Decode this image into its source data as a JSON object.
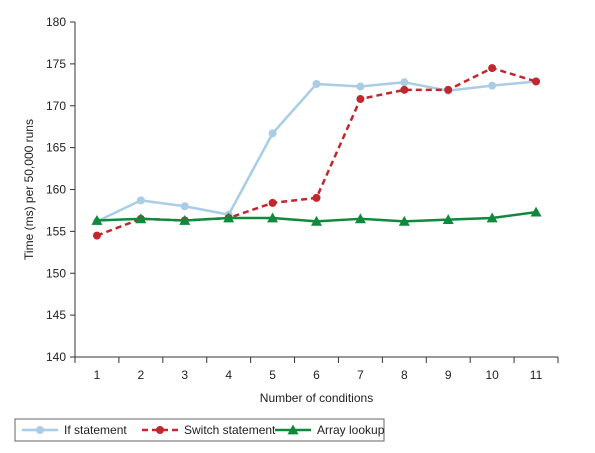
{
  "chart_data": {
    "type": "line",
    "xlabel": "Number of conditions",
    "ylabel": "Time (ms) per 50,000 runs",
    "x": [
      1,
      2,
      3,
      4,
      5,
      6,
      7,
      8,
      9,
      10,
      11
    ],
    "ylim": [
      140,
      180
    ],
    "yticks": [
      140,
      145,
      150,
      155,
      160,
      165,
      170,
      175,
      180
    ],
    "grid": false,
    "legend_position": "bottom-left",
    "series": [
      {
        "name": "If statement",
        "color": "#a9cde6",
        "line_style": "solid",
        "marker": "circle",
        "values": [
          156.2,
          158.7,
          158.0,
          157.0,
          166.7,
          172.6,
          172.3,
          172.8,
          171.8,
          172.4,
          172.9
        ]
      },
      {
        "name": "Switch statement",
        "color": "#c1272d",
        "line_style": "dashed",
        "marker": "circle",
        "values": [
          154.5,
          156.5,
          156.3,
          156.6,
          158.4,
          159.0,
          170.8,
          171.9,
          171.9,
          174.5,
          172.9
        ]
      },
      {
        "name": "Array lookup",
        "color": "#0f8a3c",
        "line_style": "solid",
        "marker": "triangle",
        "values": [
          156.3,
          156.5,
          156.3,
          156.6,
          156.6,
          156.2,
          156.5,
          156.2,
          156.4,
          156.6,
          157.3
        ]
      }
    ]
  }
}
